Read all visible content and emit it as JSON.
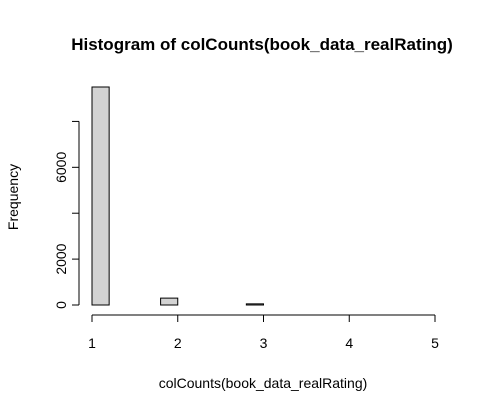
{
  "chart_data": {
    "type": "bar",
    "title": "Histogram of colCounts(book_data_realRating)",
    "xlabel": "colCounts(book_data_realRating)",
    "ylabel": "Frequency",
    "bins": [
      [
        1.0,
        1.2
      ],
      [
        1.2,
        1.4
      ],
      [
        1.4,
        1.6
      ],
      [
        1.6,
        1.8
      ],
      [
        1.8,
        2.0
      ],
      [
        2.0,
        2.2
      ],
      [
        2.2,
        2.4
      ],
      [
        2.4,
        2.6
      ],
      [
        2.6,
        2.8
      ],
      [
        2.8,
        3.0
      ],
      [
        3.0,
        3.2
      ],
      [
        3.2,
        3.4
      ],
      [
        3.4,
        3.6
      ],
      [
        3.6,
        3.8
      ],
      [
        3.8,
        4.0
      ],
      [
        4.0,
        4.2
      ],
      [
        4.2,
        4.4
      ],
      [
        4.4,
        4.6
      ],
      [
        4.6,
        4.8
      ],
      [
        4.8,
        5.0
      ]
    ],
    "values": [
      9500,
      0,
      0,
      0,
      300,
      0,
      0,
      0,
      0,
      50,
      0,
      0,
      0,
      0,
      0,
      0,
      0,
      0,
      0,
      0
    ],
    "xlim": [
      1,
      5
    ],
    "ylim": [
      0,
      9500
    ],
    "xticks": [
      "1",
      "2",
      "3",
      "4",
      "5"
    ],
    "yticks": [
      "0",
      "2000",
      "6000"
    ],
    "grid": false,
    "colors": {
      "bar_fill": "#d3d3d3",
      "bar_stroke": "#000000",
      "axis": "#000000"
    }
  }
}
